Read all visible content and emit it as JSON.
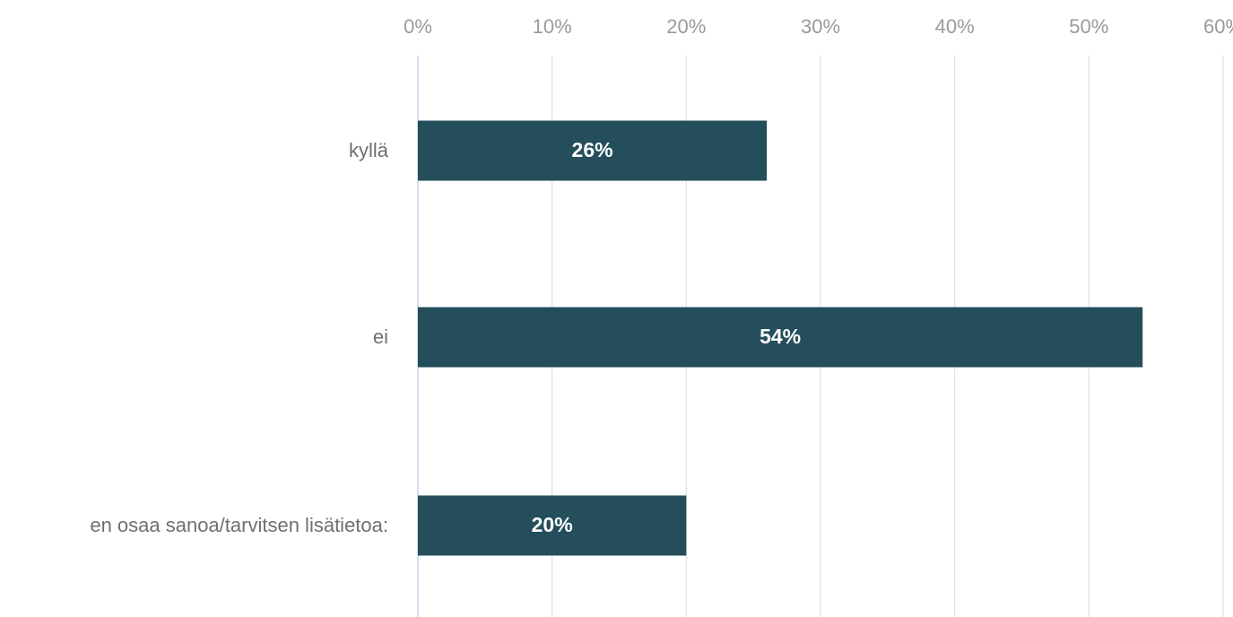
{
  "chart_data": {
    "type": "bar",
    "orientation": "horizontal",
    "categories": [
      "kyllä",
      "ei",
      "en osaa sanoa/tarvitsen lisätietoa:"
    ],
    "values": [
      26,
      54,
      20
    ],
    "data_labels": [
      "26%",
      "54%",
      "20%"
    ],
    "xlim": [
      0,
      60
    ],
    "x_ticks": [
      0,
      10,
      20,
      30,
      40,
      50,
      60
    ],
    "x_tick_labels": [
      "0%",
      "10%",
      "20%",
      "30%",
      "40%",
      "50%",
      "60%"
    ],
    "x_axis_position": "top",
    "grid": true,
    "legend": "none",
    "title": "",
    "xlabel": "",
    "ylabel": "",
    "colors": {
      "bar": "#244e5b",
      "gridline": "#e2e2e2",
      "axis": "#c9d3ea",
      "tick_text": "#9a9a9a",
      "category_text": "#6f6f6f",
      "bar_text": "#ffffff"
    }
  }
}
